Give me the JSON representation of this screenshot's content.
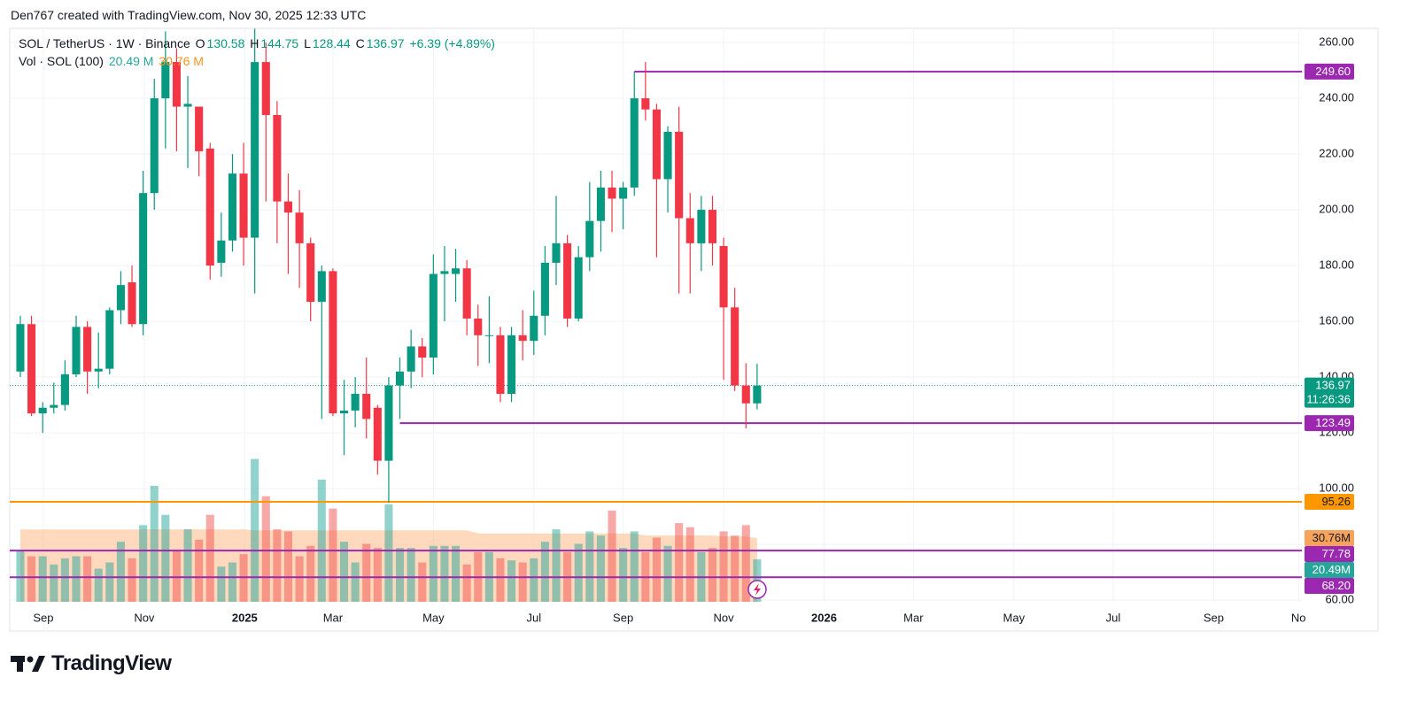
{
  "chart_data": {
    "type": "candlestick",
    "header": "Den767 created with TradingView.com, Nov 30, 2025 12:33 UTC",
    "symbol_label": "SOL / TetherUS · 1W · Binance",
    "ohlc_keys": [
      "O",
      "H",
      "L",
      "C"
    ],
    "change_label": "+6.39 (+4.89%)",
    "volume_title": "Vol · SOL (100)",
    "up_color": "#089981",
    "down_color": "#f23645",
    "open": [
      142,
      159,
      127,
      129,
      130,
      141,
      158,
      142,
      143,
      164,
      174,
      159,
      206,
      240,
      253,
      237,
      237,
      222,
      181,
      189,
      213,
      190,
      253,
      234,
      203,
      199,
      188,
      167,
      178,
      127,
      128,
      134,
      129,
      110,
      137,
      142,
      151,
      147,
      177,
      177,
      179,
      161,
      155,
      155,
      134,
      155,
      153,
      162,
      181,
      188,
      161,
      183,
      196,
      208,
      204,
      208,
      240,
      236,
      211,
      228,
      197,
      188,
      200,
      187,
      165,
      137,
      130.58
    ],
    "high": [
      162,
      162,
      131,
      138,
      146,
      162,
      160,
      156,
      165,
      178,
      180,
      214,
      247,
      264,
      258,
      248,
      237,
      224,
      199,
      220,
      224,
      265,
      260,
      239,
      213,
      207,
      190,
      180,
      179,
      139,
      140,
      147,
      130,
      140,
      147,
      157,
      154,
      184,
      187,
      186,
      182,
      166,
      169,
      158,
      158,
      164,
      171,
      187,
      205,
      191,
      187,
      210,
      214,
      214,
      210,
      249.6,
      253,
      238,
      230,
      237,
      206,
      205,
      205,
      190,
      172,
      145,
      144.75
    ],
    "low": [
      140,
      126,
      120,
      127,
      128,
      140,
      134,
      136,
      141,
      159,
      158,
      155,
      200,
      222,
      221,
      215,
      212,
      175,
      176,
      185,
      180,
      170,
      203,
      188,
      177,
      172,
      160,
      125,
      126,
      112,
      122,
      118,
      105,
      95,
      125,
      136,
      140,
      141,
      160,
      167,
      155,
      144,
      145,
      131,
      131,
      146,
      148,
      155,
      173,
      158,
      160,
      178,
      185,
      192,
      193,
      205,
      232,
      183,
      199,
      170,
      170,
      178,
      180,
      139,
      135,
      121.6,
      128.44
    ],
    "close": [
      159,
      127,
      129,
      130,
      141,
      158,
      142,
      143,
      164,
      173,
      159,
      206,
      240,
      253,
      237,
      238,
      221,
      180,
      189,
      213,
      190,
      253,
      234,
      203,
      199,
      188,
      167,
      178,
      127,
      128,
      134,
      125,
      110,
      137,
      142,
      151,
      147,
      177,
      178,
      179,
      161,
      155,
      155,
      134,
      155,
      153,
      162,
      181,
      188,
      161,
      183,
      196,
      208,
      204,
      208,
      240,
      236,
      211,
      228,
      197,
      188,
      200,
      188,
      165,
      137,
      130.58,
      136.97
    ],
    "volume": {
      "up_color": "#26a69a",
      "down_color": "#ef5350",
      "ma_color": "#ffb987",
      "values": [
        25,
        22,
        22,
        18,
        21,
        22,
        22,
        16,
        19,
        29,
        21,
        37,
        56,
        42,
        25,
        35,
        30,
        42,
        17,
        19,
        23,
        69,
        51,
        35,
        34,
        22,
        27,
        59,
        45,
        29,
        19,
        28,
        26,
        47,
        26,
        26,
        19,
        27,
        27,
        27,
        18,
        24,
        24,
        21,
        20,
        19,
        21,
        29,
        35,
        24,
        28,
        34,
        32,
        44,
        26,
        34,
        24,
        31,
        27,
        38,
        36,
        24,
        26,
        34,
        32,
        37,
        20.49
      ],
      "ma_values": [
        35,
        35,
        35,
        35,
        35,
        35,
        35,
        35,
        35,
        35,
        35,
        35,
        35,
        35,
        35,
        35,
        35,
        35,
        35,
        35,
        35,
        34.5,
        34.5,
        34.5,
        34.5,
        34.5,
        34.5,
        34.5,
        34.5,
        34.5,
        34.5,
        34.5,
        34.5,
        34.5,
        34.5,
        34.5,
        34.5,
        34.5,
        34.5,
        34.5,
        34.5,
        33,
        33,
        33,
        33,
        33,
        33,
        33,
        33,
        33,
        33,
        33,
        33,
        33,
        33,
        33,
        32,
        32,
        32,
        32,
        32,
        32,
        32,
        31.5,
        31.5,
        31.5,
        30.76
      ],
      "legend_label": "20.49 M",
      "tag_label": "20.49M",
      "ma_legend_label": "30.76 M",
      "ma_tag_label": "30.76M"
    },
    "last_price_time": "11:26:36",
    "ylim": [
      59.4,
      265.1
    ],
    "yticks": [
      {
        "value": 60,
        "label": "60.00"
      },
      {
        "value": 80,
        "label": "80.00"
      },
      {
        "value": 100,
        "label": "100.00"
      },
      {
        "value": 120,
        "label": "120.00"
      },
      {
        "value": 140,
        "label": "140.00"
      },
      {
        "value": 160,
        "label": "160.00"
      },
      {
        "value": 180,
        "label": "180.00"
      },
      {
        "value": 200,
        "label": "200.00"
      },
      {
        "value": 220,
        "label": "220.00"
      },
      {
        "value": 240,
        "label": "240.00"
      },
      {
        "value": 260,
        "label": "260.00"
      }
    ],
    "xlim": [
      -0.95,
      114.8
    ],
    "xticks": [
      {
        "value": 2.06,
        "label": "Sep"
      },
      {
        "value": 11.1,
        "label": "Nov"
      },
      {
        "value": 20.1,
        "label": "2025"
      },
      {
        "value": 28,
        "label": "Mar"
      },
      {
        "value": 37,
        "label": "May"
      },
      {
        "value": 46,
        "label": "Jul"
      },
      {
        "value": 54,
        "label": "Sep"
      },
      {
        "value": 63,
        "label": "Nov"
      },
      {
        "value": 72,
        "label": "2026"
      },
      {
        "value": 80,
        "label": "Mar"
      },
      {
        "value": 89,
        "label": "May"
      },
      {
        "value": 97.9,
        "label": "Jul"
      },
      {
        "value": 106.9,
        "label": "Sep"
      },
      {
        "value": 114.5,
        "label": "No"
      }
    ],
    "grid": true,
    "levels": [
      {
        "value": 249.6,
        "label": "249.60",
        "color": "#9c27b0",
        "from_index": 55
      },
      {
        "value": 123.49,
        "color": "#9c27b0",
        "from_index": 34
      },
      {
        "value": 95.26,
        "color": "#ff9800"
      },
      {
        "value": 77.78,
        "color": "#9c27b0"
      },
      {
        "value": 68.2,
        "label": "68.20",
        "color": "#9c27b0"
      }
    ],
    "brand": "TradingView"
  }
}
